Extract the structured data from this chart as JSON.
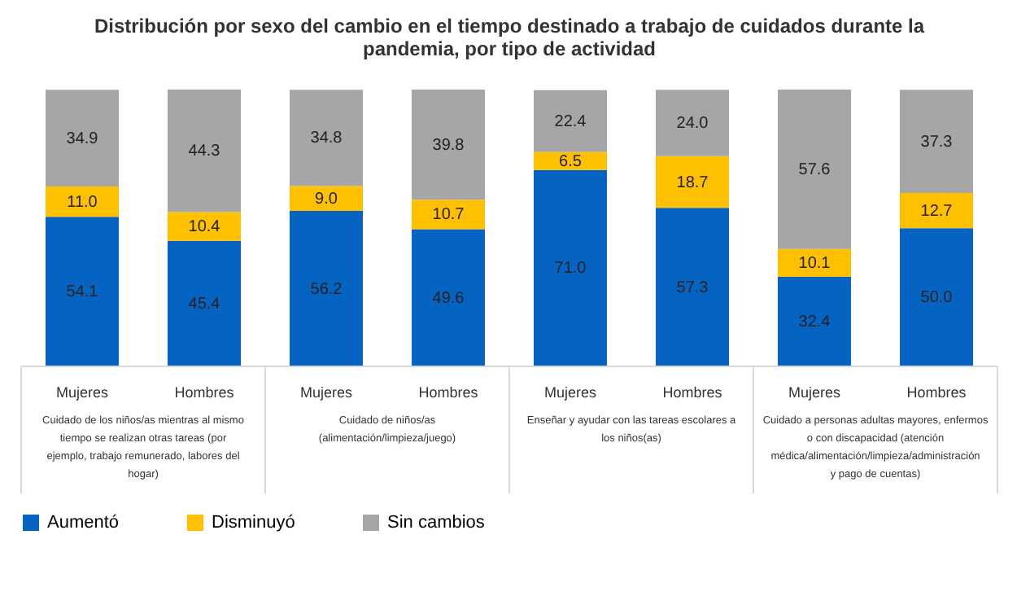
{
  "chart_data": {
    "type": "bar",
    "stacked": true,
    "legend": "bottom",
    "title": "Distribución por sexo del cambio en el tiempo destinado a trabajo de cuidados durante la pandemia, por tipo de actividad",
    "categories": [
      "Mujeres",
      "Hombres",
      "Mujeres",
      "Hombres",
      "Mujeres",
      "Hombres",
      "Mujeres",
      "Hombres"
    ],
    "series": [
      {
        "name": "Aumentó",
        "color": "#0563c1",
        "values": [
          54.1,
          45.4,
          56.2,
          49.6,
          71.0,
          57.3,
          32.4,
          50.0
        ],
        "value_labels": [
          "54.1",
          "45.4",
          "56.2",
          "49.6",
          "71.0",
          "57.3",
          "32.4",
          "50.0"
        ]
      },
      {
        "name": "Disminuyó",
        "color": "#ffc000",
        "values": [
          11.0,
          10.4,
          9.0,
          10.7,
          6.5,
          18.7,
          10.1,
          12.7
        ],
        "value_labels": [
          "11.0",
          "10.4",
          "9.0",
          "10.7",
          "6.5",
          "18.7",
          "10.1",
          "12.7"
        ]
      },
      {
        "name": "Sin cambios",
        "color": "#a6a6a6",
        "values": [
          34.9,
          44.3,
          34.8,
          39.8,
          22.4,
          24.0,
          57.6,
          37.3
        ],
        "value_labels": [
          "34.9",
          "44.3",
          "34.8",
          "39.8",
          "22.4",
          "24.0",
          "57.6",
          "37.3"
        ]
      }
    ],
    "annotations": [
      "Cuidado de los niños/as mientras al mismo tiempo se realizan otras tareas (por ejemplo, trabajo remunerado, labores del hogar)",
      "Cuidado de niños/as (alimentación/limpieza/juego)",
      "Enseñar y ayudar con las tareas escolares a los niños(as)",
      "Cuidado a personas adultas mayores, enfermos o con discapacidad (atención médica/alimentación/limpieza/administración y pago de cuentas)"
    ]
  }
}
